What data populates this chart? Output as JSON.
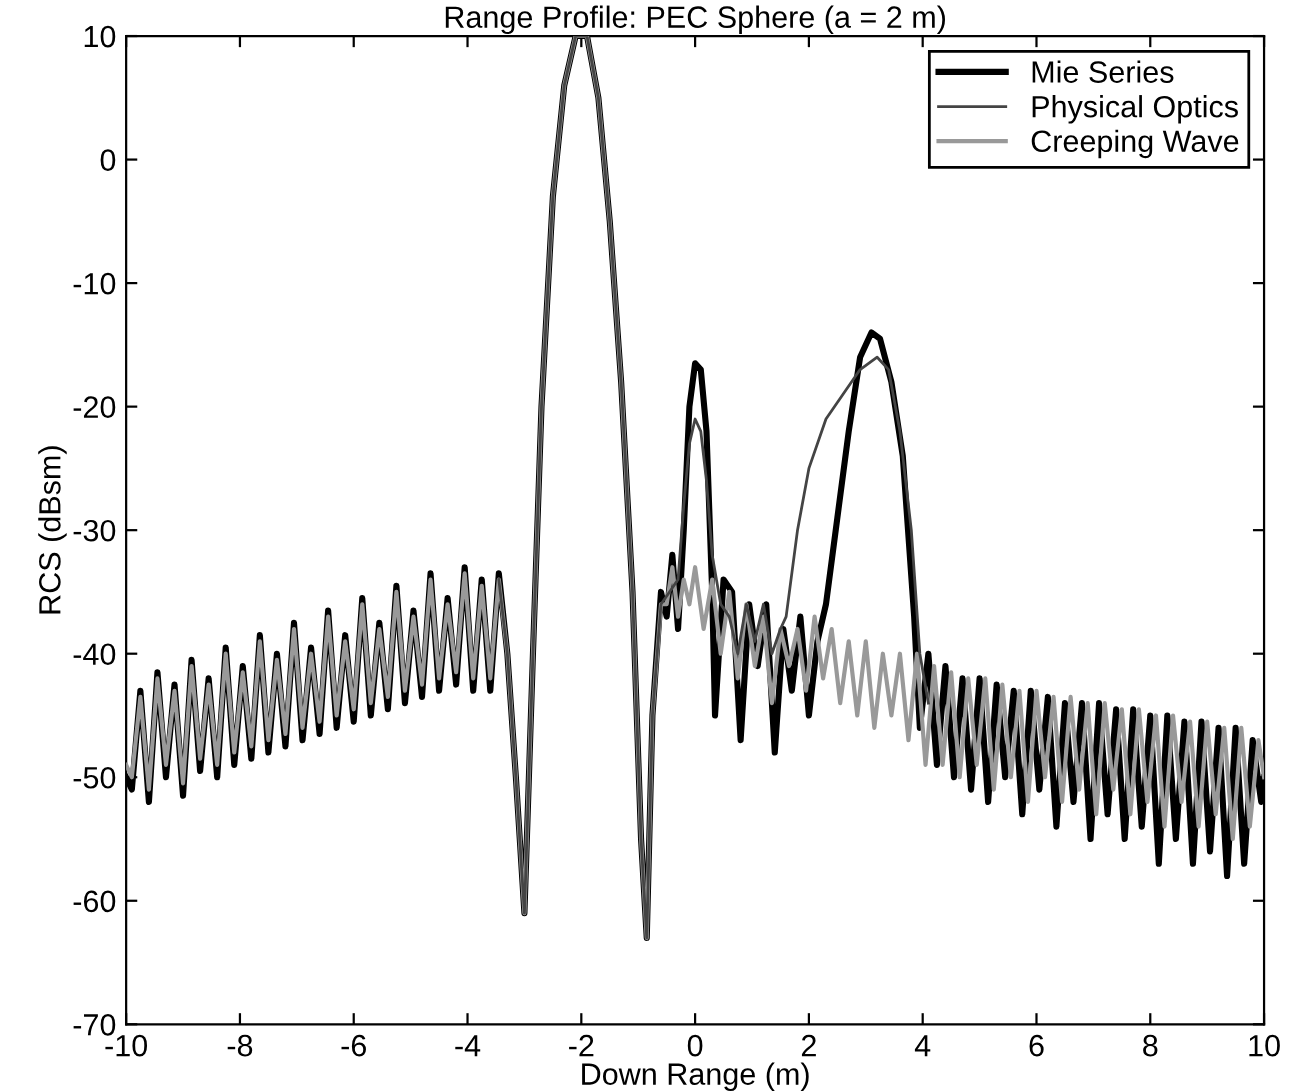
{
  "chart_data": {
    "type": "line",
    "title": "Range Profile: PEC Sphere (a = 2 m)",
    "xlabel": "Down Range (m)",
    "ylabel": "RCS (dBsm)",
    "xlim": [
      -10,
      10
    ],
    "ylim": [
      -70,
      10
    ],
    "xticks": [
      -10,
      -8,
      -6,
      -4,
      -2,
      0,
      2,
      4,
      6,
      8,
      10
    ],
    "yticks": [
      -70,
      -60,
      -50,
      -40,
      -30,
      -20,
      -10,
      0,
      10
    ],
    "grid": false,
    "legend": "top right",
    "line_style": "solid",
    "marker": "none",
    "series": [
      {
        "name": "Mie Series",
        "color": "#000000",
        "x": [
          -10,
          -9.9,
          -9.75,
          -9.6,
          -9.45,
          -9.3,
          -9.15,
          -9.0,
          -8.85,
          -8.7,
          -8.55,
          -8.4,
          -8.25,
          -8.1,
          -7.95,
          -7.8,
          -7.65,
          -7.5,
          -7.35,
          -7.2,
          -7.05,
          -6.9,
          -6.75,
          -6.6,
          -6.45,
          -6.3,
          -6.15,
          -6.0,
          -5.85,
          -5.7,
          -5.55,
          -5.4,
          -5.25,
          -5.1,
          -4.95,
          -4.8,
          -4.65,
          -4.5,
          -4.35,
          -4.2,
          -4.05,
          -3.9,
          -3.75,
          -3.6,
          -3.45,
          -3.3,
          -3.15,
          -3.0,
          -2.85,
          -2.7,
          -2.5,
          -2.3,
          -2.1,
          -2.0,
          -1.9,
          -1.7,
          -1.5,
          -1.3,
          -1.1,
          -0.95,
          -0.85,
          -0.75,
          -0.6,
          -0.5,
          -0.4,
          -0.3,
          -0.2,
          -0.1,
          0.0,
          0.1,
          0.2,
          0.3,
          0.35,
          0.5,
          0.65,
          0.8,
          0.95,
          1.1,
          1.25,
          1.4,
          1.55,
          1.7,
          1.85,
          2.0,
          2.15,
          2.3,
          2.5,
          2.7,
          2.9,
          3.1,
          3.25,
          3.45,
          3.65,
          3.85,
          3.95,
          4.1,
          4.25,
          4.4,
          4.55,
          4.7,
          4.85,
          5.0,
          5.15,
          5.3,
          5.45,
          5.6,
          5.75,
          5.9,
          6.05,
          6.2,
          6.35,
          6.5,
          6.65,
          6.8,
          6.95,
          7.1,
          7.25,
          7.4,
          7.55,
          7.7,
          7.85,
          8.0,
          8.15,
          8.3,
          8.45,
          8.6,
          8.75,
          8.9,
          9.05,
          9.2,
          9.35,
          9.5,
          9.65,
          9.8,
          9.95,
          10
        ],
        "values": [
          -50,
          -51,
          -43,
          -52,
          -41.5,
          -50,
          -42.5,
          -51.5,
          -40.5,
          -49.5,
          -42,
          -50,
          -39.5,
          -49,
          -41,
          -48.5,
          -38.5,
          -48,
          -40,
          -47.5,
          -37.5,
          -47,
          -39.5,
          -46.5,
          -36.5,
          -46,
          -38.5,
          -45.5,
          -35.5,
          -45,
          -37.5,
          -44.5,
          -34.5,
          -44,
          -36.5,
          -43.5,
          -33.5,
          -43,
          -35.5,
          -42.5,
          -33,
          -43,
          -34,
          -43,
          -33.5,
          -40,
          -50,
          -61,
          -40,
          -20,
          -3,
          6,
          10,
          10,
          10,
          5,
          -5,
          -18,
          -35,
          -55,
          -63,
          -45,
          -35,
          -37,
          -32,
          -38,
          -30,
          -20,
          -16.5,
          -17,
          -22,
          -35,
          -45,
          -34,
          -35,
          -47,
          -36,
          -41,
          -36,
          -48,
          -38,
          -43,
          -37,
          -45,
          -39,
          -36,
          -29,
          -22,
          -16,
          -14,
          -14.5,
          -18,
          -24,
          -37,
          -46,
          -40,
          -49,
          -41,
          -50,
          -42,
          -51,
          -42,
          -52,
          -42.5,
          -50,
          -43,
          -53,
          -43,
          -51,
          -43.5,
          -54,
          -44,
          -52,
          -44,
          -55,
          -44,
          -53,
          -44.5,
          -55,
          -44.5,
          -54,
          -45,
          -57,
          -45,
          -55,
          -45.5,
          -57,
          -45.5,
          -56,
          -46,
          -58,
          -46,
          -57,
          -47,
          -52,
          -50
        ]
      },
      {
        "name": "Physical Optics",
        "color": "#444444",
        "x": [
          -3.45,
          -3.3,
          -3.15,
          -3.0,
          -2.85,
          -2.7,
          -2.5,
          -2.3,
          -2.1,
          -2.0,
          -1.9,
          -1.7,
          -1.5,
          -1.3,
          -1.1,
          -0.95,
          -0.85,
          -0.75,
          -0.6,
          -0.45,
          -0.3,
          -0.2,
          -0.1,
          0.0,
          0.1,
          0.2,
          0.3,
          0.45,
          0.6,
          0.75,
          0.9,
          1.05,
          1.2,
          1.35,
          1.5,
          1.6,
          1.8,
          2.0,
          2.3,
          2.6,
          2.9,
          3.2,
          3.4,
          3.6,
          3.8,
          3.95,
          4.1
        ],
        "values": [
          -34,
          -40,
          -50,
          -61,
          -40,
          -20,
          -3,
          6,
          10,
          10,
          10,
          5,
          -5,
          -18,
          -35,
          -55,
          -63,
          -45,
          -36,
          -35,
          -34,
          -28,
          -23,
          -21,
          -22,
          -26,
          -32,
          -36,
          -37,
          -40,
          -36,
          -39,
          -36,
          -40,
          -38,
          -37,
          -30,
          -25,
          -21,
          -19,
          -17,
          -16,
          -17,
          -22,
          -30,
          -40,
          -44
        ]
      },
      {
        "name": "Creeping Wave",
        "color": "#999999",
        "x": [
          -10,
          -9.9,
          -9.75,
          -9.6,
          -9.45,
          -9.3,
          -9.15,
          -9.0,
          -8.85,
          -8.7,
          -8.55,
          -8.4,
          -8.25,
          -8.1,
          -7.95,
          -7.8,
          -7.65,
          -7.5,
          -7.35,
          -7.2,
          -7.05,
          -6.9,
          -6.75,
          -6.6,
          -6.45,
          -6.3,
          -6.15,
          -6.0,
          -5.85,
          -5.7,
          -5.55,
          -5.4,
          -5.25,
          -5.1,
          -4.95,
          -4.8,
          -4.65,
          -4.5,
          -4.35,
          -4.2,
          -4.05,
          -3.9,
          -3.75,
          -3.6,
          -3.45,
          -3.3,
          -3.15,
          -3.0,
          -2.85,
          -2.7,
          -2.5,
          -2.3,
          -2.1,
          -2.0,
          -1.9,
          -1.7,
          -1.5,
          -1.3,
          -1.1,
          -0.95,
          -0.85,
          -0.75,
          -0.6,
          -0.5,
          -0.4,
          -0.3,
          -0.2,
          -0.1,
          0.0,
          0.15,
          0.3,
          0.45,
          0.6,
          0.75,
          0.9,
          1.05,
          1.2,
          1.35,
          1.5,
          1.65,
          1.8,
          1.95,
          2.1,
          2.25,
          2.4,
          2.55,
          2.7,
          2.85,
          3.0,
          3.15,
          3.3,
          3.45,
          3.6,
          3.75,
          3.9,
          4.05,
          4.2,
          4.35,
          4.5,
          4.65,
          4.8,
          4.95,
          5.1,
          5.25,
          5.4,
          5.55,
          5.7,
          5.85,
          6.0,
          6.15,
          6.3,
          6.45,
          6.6,
          6.75,
          6.9,
          7.05,
          7.2,
          7.35,
          7.5,
          7.65,
          7.8,
          7.95,
          8.1,
          8.25,
          8.4,
          8.55,
          8.7,
          8.85,
          9.0,
          9.15,
          9.3,
          9.45,
          9.6,
          9.75,
          9.9,
          10
        ],
        "values": [
          -49,
          -50,
          -43.5,
          -51,
          -42,
          -49,
          -43,
          -50.5,
          -41,
          -48.5,
          -42.5,
          -49,
          -40,
          -48,
          -41.5,
          -47.5,
          -39,
          -47,
          -40.5,
          -46.5,
          -38,
          -46,
          -40,
          -45.5,
          -37,
          -45,
          -39,
          -44.5,
          -36,
          -44,
          -38,
          -43.5,
          -35,
          -43,
          -37,
          -42.5,
          -34,
          -42,
          -36,
          -41.5,
          -33.5,
          -42,
          -34.5,
          -42,
          -34,
          -40,
          -50,
          -61,
          -40,
          -20,
          -3,
          6,
          10,
          10,
          10,
          5,
          -5,
          -18,
          -35,
          -55,
          -63,
          -45,
          -36,
          -36,
          -33,
          -37,
          -34,
          -36,
          -33,
          -38,
          -34,
          -40,
          -35,
          -42,
          -36,
          -41,
          -37,
          -44,
          -38,
          -41,
          -38,
          -43,
          -37,
          -42,
          -38,
          -44,
          -39,
          -45,
          -39,
          -46,
          -40,
          -45,
          -40,
          -47,
          -40,
          -49,
          -41,
          -49,
          -41.5,
          -50,
          -42,
          -49,
          -42,
          -51,
          -42.5,
          -50,
          -43,
          -52,
          -43,
          -50,
          -43.5,
          -52,
          -43.5,
          -51,
          -44,
          -53,
          -44,
          -51,
          -44.5,
          -53,
          -44.5,
          -52,
          -45,
          -54,
          -45,
          -52,
          -45.5,
          -54,
          -45.5,
          -53,
          -46,
          -55,
          -46,
          -54,
          -47,
          -50
        ]
      }
    ]
  }
}
